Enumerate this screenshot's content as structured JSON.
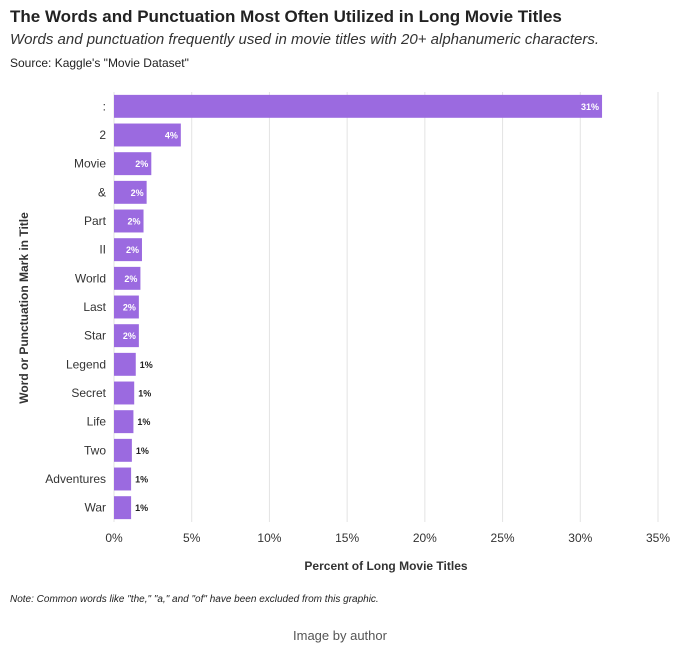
{
  "header": {
    "title": "The Words and Punctuation Most Often Utilized in Long Movie Titles",
    "subtitle": "Words and punctuation frequently used in movie titles with 20+ alphanumeric characters.",
    "source": "Source: Kaggle's \"Movie Dataset\""
  },
  "footer": {
    "note": "Note: Common words like \"the,\" \"a,\" and \"of\" have been excluded from this graphic.",
    "credit": "Image by author"
  },
  "chart_data": {
    "type": "bar",
    "orientation": "horizontal",
    "categories": [
      ":",
      "2",
      "Movie",
      "&",
      "Part",
      "II",
      "World",
      "Last",
      "Star",
      "Legend",
      "Secret",
      "Life",
      "Two",
      "Adventures",
      "War"
    ],
    "values": [
      31.4,
      4.3,
      2.4,
      2.1,
      1.9,
      1.8,
      1.7,
      1.6,
      1.6,
      1.4,
      1.3,
      1.25,
      1.15,
      1.1,
      1.1
    ],
    "data_labels": [
      "31%",
      "4%",
      "2%",
      "2%",
      "2%",
      "2%",
      "2%",
      "2%",
      "2%",
      "1%",
      "1%",
      "1%",
      "1%",
      "1%",
      "1%"
    ],
    "xlabel": "Percent of Long Movie Titles",
    "ylabel": "Word or Punctuation Mark in Title",
    "xlim": [
      0,
      35
    ],
    "xticks": [
      0,
      5,
      10,
      15,
      20,
      25,
      30,
      35
    ],
    "xtick_labels": [
      "0%",
      "5%",
      "10%",
      "15%",
      "20%",
      "25%",
      "30%",
      "35%"
    ],
    "grid": true,
    "bar_color": "#9b6ae0",
    "label_inside_color": "#ffffff",
    "label_outside_color": "#222222"
  }
}
